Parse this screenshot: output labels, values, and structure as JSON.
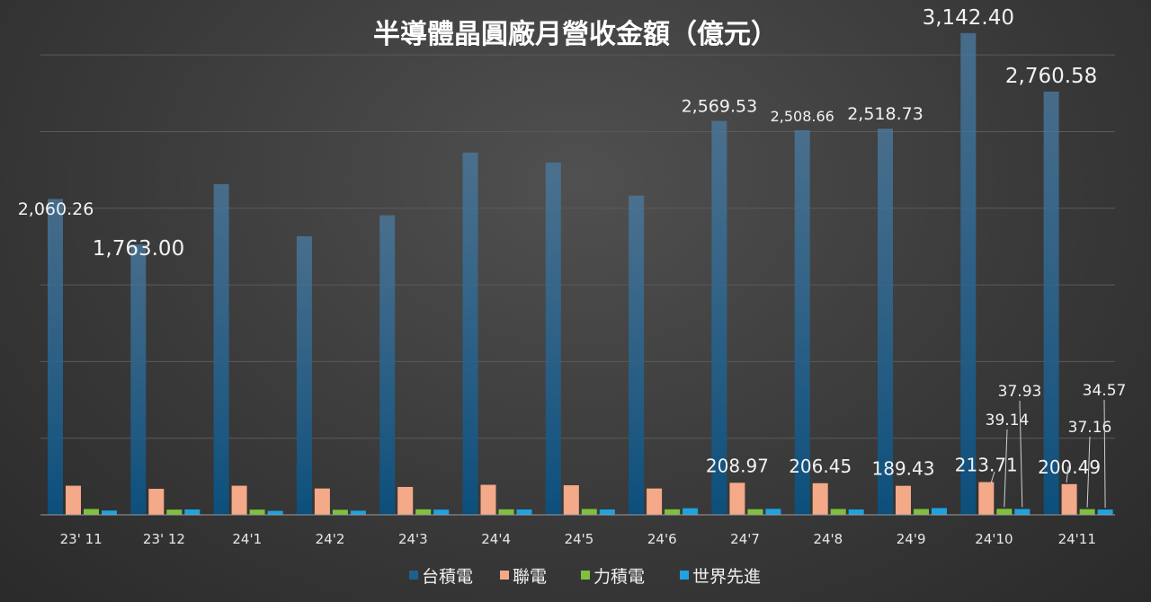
{
  "chart_data": {
    "type": "bar",
    "title": "半導體晶圓廠月營收金額（億元）",
    "categories": [
      "23' 11",
      "23' 12",
      "24'1",
      "24'2",
      "24'3",
      "24'4",
      "24'5",
      "24'6",
      "24'7",
      "24'8",
      "24'9",
      "24'10",
      "24'11"
    ],
    "series": [
      {
        "name": "台積電",
        "color": "#1f5f8b",
        "values": [
          2060.26,
          1763.0,
          2157.0,
          1817.0,
          1954.0,
          2363.0,
          2298.0,
          2082.0,
          2569.53,
          2508.66,
          2518.73,
          3142.4,
          2760.58
        ]
      },
      {
        "name": "聯電",
        "color": "#f4a988",
        "values": [
          190.0,
          170.0,
          190.0,
          172.0,
          182.0,
          196.0,
          193.0,
          172.0,
          208.97,
          206.45,
          189.43,
          213.71,
          200.49
        ]
      },
      {
        "name": "力積電",
        "color": "#7fc13c",
        "values": [
          38.0,
          34.0,
          34.0,
          33.0,
          36.0,
          36.0,
          38.0,
          36.0,
          37.0,
          38.0,
          38.0,
          39.14,
          37.16
        ]
      },
      {
        "name": "世界先進",
        "color": "#1ea3e0",
        "values": [
          28.0,
          35.0,
          26.0,
          27.0,
          34.0,
          35.0,
          35.0,
          43.0,
          39.0,
          35.0,
          44.0,
          37.93,
          34.57
        ]
      }
    ],
    "data_labels": {
      "台積電": [
        "2,060.26",
        "1,763.00",
        "",
        "",
        "",
        "",
        "",
        "",
        "2,569.53",
        "2,508.66",
        "2,518.73",
        "3,142.40",
        "2,760.58"
      ],
      "聯電": [
        "",
        "",
        "",
        "",
        "",
        "",
        "",
        "",
        "208.97",
        "206.45",
        "189.43",
        "213.71",
        "200.49"
      ],
      "力積電": [
        "",
        "",
        "",
        "",
        "",
        "",
        "",
        "",
        "",
        "",
        "",
        "39.14",
        "37.16"
      ],
      "世界先進": [
        "",
        "",
        "",
        "",
        "",
        "",
        "",
        "",
        "",
        "",
        "",
        "37.93",
        "34.57"
      ]
    },
    "ylim": [
      0,
      3200
    ],
    "grid": true,
    "legend_position": "bottom"
  }
}
